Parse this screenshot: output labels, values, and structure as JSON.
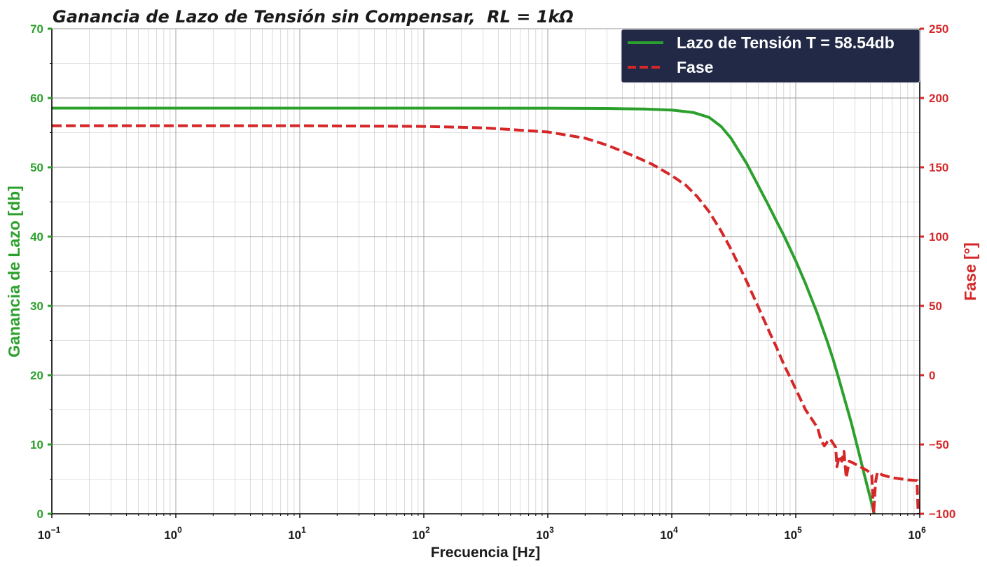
{
  "chart_data": {
    "type": "line",
    "title": "Ganancia de Lazo de Tensión sin Compensar,",
    "title_math": "RL = 1kΩ",
    "xlabel": "Frecuencia [Hz]",
    "ylabel_left": "Ganancia de Lazo [db]",
    "ylabel_right": "Fase [°]",
    "xscale": "log",
    "xlim": [
      0.1,
      1000000
    ],
    "ylim_left": [
      0,
      70
    ],
    "ylim_right": [
      -100,
      250
    ],
    "grid": true,
    "grid_minor": true,
    "legend_position": "top-right",
    "x_ticks": [
      {
        "base": "10",
        "exp": "−1"
      },
      {
        "base": "10",
        "exp": "0"
      },
      {
        "base": "10",
        "exp": "1"
      },
      {
        "base": "10",
        "exp": "2"
      },
      {
        "base": "10",
        "exp": "3"
      },
      {
        "base": "10",
        "exp": "4"
      },
      {
        "base": "10",
        "exp": "5"
      },
      {
        "base": "10",
        "exp": "6"
      }
    ],
    "y_left_ticks": [
      "0",
      "10",
      "20",
      "30",
      "40",
      "50",
      "60",
      "70"
    ],
    "y_right_ticks": [
      "−100",
      "−50",
      "0",
      "50",
      "100",
      "150",
      "200",
      "250"
    ],
    "series": [
      {
        "name": "Lazo de Tensión T = 58.54db",
        "axis": "left",
        "color": "#2ca02c",
        "style": "solid",
        "points": [
          [
            0.1,
            58.54
          ],
          [
            1,
            58.54
          ],
          [
            10,
            58.54
          ],
          [
            100,
            58.54
          ],
          [
            1000,
            58.53
          ],
          [
            3000,
            58.48
          ],
          [
            6000,
            58.4
          ],
          [
            10000,
            58.25
          ],
          [
            15000,
            57.9
          ],
          [
            20000,
            57.2
          ],
          [
            25000,
            55.9
          ],
          [
            30000,
            54.2
          ],
          [
            40000,
            50.6
          ],
          [
            50000,
            47.3
          ],
          [
            60000,
            44.6
          ],
          [
            70000,
            42.2
          ],
          [
            80000,
            40.2
          ],
          [
            100000,
            36.5
          ],
          [
            120000,
            33.2
          ],
          [
            150000,
            28.8
          ],
          [
            180000,
            24.8
          ],
          [
            200000,
            22.3
          ],
          [
            220000,
            19.8
          ],
          [
            250000,
            16.3
          ],
          [
            280000,
            13.2
          ],
          [
            320000,
            9.1
          ],
          [
            360000,
            5.4
          ],
          [
            400000,
            2.2
          ],
          [
            430000,
            0
          ]
        ]
      },
      {
        "name": "Fase",
        "axis": "right",
        "color": "#d62728",
        "style": "dashed",
        "points": [
          [
            0.1,
            180
          ],
          [
            1,
            180
          ],
          [
            10,
            180
          ],
          [
            100,
            179.5
          ],
          [
            300,
            178.5
          ],
          [
            1000,
            175.5
          ],
          [
            2000,
            171
          ],
          [
            3000,
            166
          ],
          [
            5000,
            158
          ],
          [
            7000,
            152
          ],
          [
            10000,
            144
          ],
          [
            13000,
            137
          ],
          [
            16000,
            129
          ],
          [
            20000,
            118
          ],
          [
            25000,
            104
          ],
          [
            30000,
            91
          ],
          [
            40000,
            68
          ],
          [
            50000,
            49
          ],
          [
            60000,
            33
          ],
          [
            70000,
            20
          ],
          [
            80000,
            8
          ],
          [
            100000,
            -10
          ],
          [
            120000,
            -25
          ],
          [
            150000,
            -38
          ],
          [
            160000,
            -47
          ],
          [
            170000,
            -51
          ],
          [
            180000,
            -48
          ],
          [
            190000,
            -46
          ],
          [
            210000,
            -52
          ],
          [
            215000,
            -66
          ],
          [
            225000,
            -58
          ],
          [
            235000,
            -62
          ],
          [
            245000,
            -55
          ],
          [
            255000,
            -74
          ],
          [
            270000,
            -62
          ],
          [
            300000,
            -64
          ],
          [
            330000,
            -66
          ],
          [
            380000,
            -69
          ],
          [
            410000,
            -72
          ],
          [
            425000,
            -100
          ],
          [
            440000,
            -77
          ],
          [
            455000,
            -70
          ],
          [
            500000,
            -72
          ],
          [
            600000,
            -74
          ],
          [
            800000,
            -75.5
          ],
          [
            950000,
            -76
          ],
          [
            970000,
            -100
          ]
        ]
      }
    ]
  }
}
